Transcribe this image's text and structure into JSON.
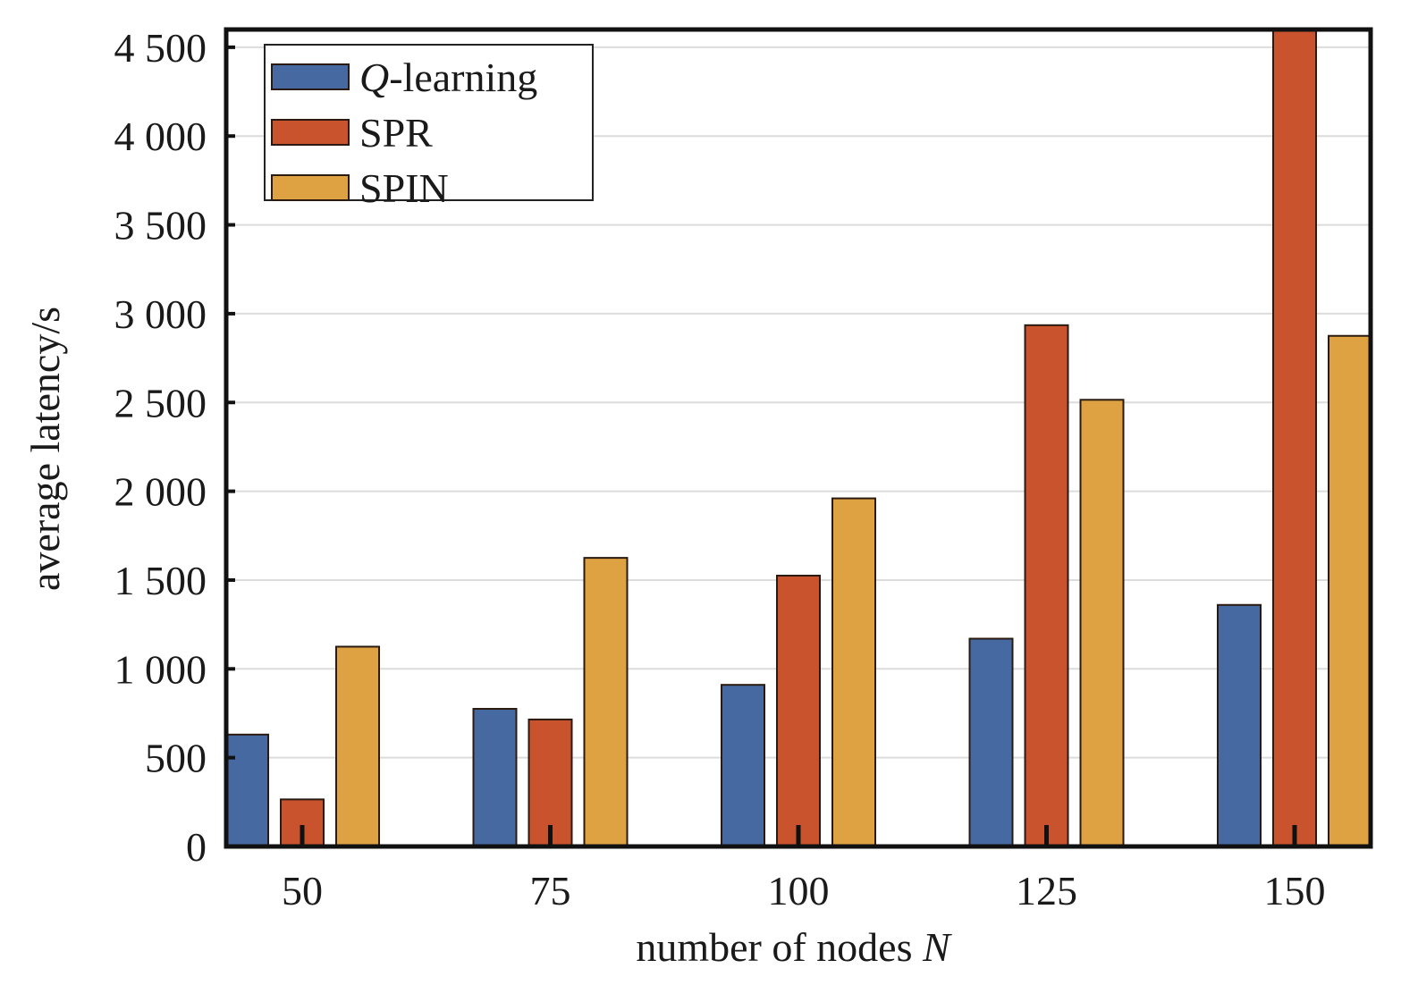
{
  "chart_data": {
    "type": "bar",
    "categories": [
      "50",
      "75",
      "100",
      "125",
      "150"
    ],
    "series": [
      {
        "name": "Q-learning",
        "name_italic": "Q",
        "name_rest": "-learning",
        "color": "#4669a1",
        "values": [
          630,
          775,
          910,
          1170,
          1360
        ]
      },
      {
        "name": "SPR",
        "color": "#c9532d",
        "values": [
          265,
          715,
          1525,
          2935,
          4600
        ]
      },
      {
        "name": "SPIN",
        "color": "#dea243",
        "values": [
          1125,
          1625,
          1960,
          2515,
          2875
        ]
      }
    ],
    "xlabel": "number of nodes N",
    "xlabel_text": "number of nodes ",
    "xlabel_var": "N",
    "ylabel": "average latency/s",
    "ylim": [
      0,
      4600
    ],
    "yticks": [
      0,
      500,
      1000,
      1500,
      2000,
      2500,
      3000,
      3500,
      4000,
      4500
    ],
    "ytick_labels": [
      "0",
      "500",
      "1 000",
      "1 500",
      "2 000",
      "2 500",
      "3 000",
      "3 500",
      "4 000",
      "4 500"
    ],
    "grid": true,
    "legend_position": "top-left"
  }
}
